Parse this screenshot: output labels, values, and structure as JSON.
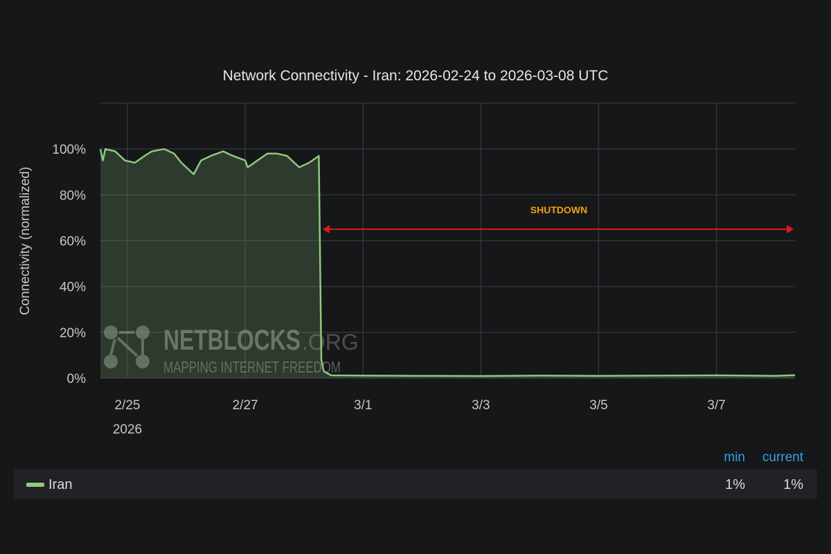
{
  "chart_data": {
    "type": "area",
    "title": "Network Connectivity - Iran: 2026-02-24 to 2026-03-08 UTC",
    "ylabel": "Connectivity (normalized)",
    "xlabel": "",
    "ylim": [
      0,
      120
    ],
    "xlim": [
      "2026-02-24T13:00",
      "2026-03-08T08:00"
    ],
    "y_ticks": [
      "0%",
      "20%",
      "40%",
      "60%",
      "80%",
      "100%"
    ],
    "y_tick_values": [
      0,
      20,
      40,
      60,
      80,
      100
    ],
    "x_ticks": [
      {
        "date": "2026-02-25T00:00",
        "label": "2/25",
        "sublabel": "2026"
      },
      {
        "date": "2026-02-27T00:00",
        "label": "2/27"
      },
      {
        "date": "2026-03-01T00:00",
        "label": "3/1"
      },
      {
        "date": "2026-03-03T00:00",
        "label": "3/3"
      },
      {
        "date": "2026-03-05T00:00",
        "label": "3/5"
      },
      {
        "date": "2026-03-07T00:00",
        "label": "3/7"
      }
    ],
    "grid": true,
    "series": [
      {
        "name": "Iran",
        "color": "#8fc97e",
        "points": [
          [
            "2026-02-24T13:00",
            100
          ],
          [
            "2026-02-24T14:00",
            95
          ],
          [
            "2026-02-24T15:00",
            100
          ],
          [
            "2026-02-24T19:00",
            99
          ],
          [
            "2026-02-24T23:00",
            95
          ],
          [
            "2026-02-25T03:00",
            94
          ],
          [
            "2026-02-25T07:00",
            97
          ],
          [
            "2026-02-25T10:00",
            99
          ],
          [
            "2026-02-25T15:00",
            100
          ],
          [
            "2026-02-25T19:00",
            98
          ],
          [
            "2026-02-25T22:00",
            94
          ],
          [
            "2026-02-26T00:00",
            92
          ],
          [
            "2026-02-26T03:00",
            89
          ],
          [
            "2026-02-26T06:00",
            95
          ],
          [
            "2026-02-26T10:00",
            97
          ],
          [
            "2026-02-26T15:00",
            99
          ],
          [
            "2026-02-26T19:00",
            97
          ],
          [
            "2026-02-27T00:00",
            95
          ],
          [
            "2026-02-27T01:00",
            92
          ],
          [
            "2026-02-27T05:00",
            95
          ],
          [
            "2026-02-27T09:00",
            98
          ],
          [
            "2026-02-27T13:00",
            98
          ],
          [
            "2026-02-27T17:00",
            97
          ],
          [
            "2026-02-27T22:00",
            92
          ],
          [
            "2026-02-28T02:00",
            94
          ],
          [
            "2026-02-28T06:00",
            97
          ],
          [
            "2026-02-28T07:00",
            8
          ],
          [
            "2026-02-28T08:00",
            3
          ],
          [
            "2026-02-28T11:00",
            1.2
          ],
          [
            "2026-03-01T00:00",
            1.1
          ],
          [
            "2026-03-02T00:00",
            1.0
          ],
          [
            "2026-03-03T00:00",
            0.9
          ],
          [
            "2026-03-04T00:00",
            1.1
          ],
          [
            "2026-03-05T00:00",
            1.0
          ],
          [
            "2026-03-06T00:00",
            1.1
          ],
          [
            "2026-03-07T00:00",
            1.2
          ],
          [
            "2026-03-08T00:00",
            1.0
          ],
          [
            "2026-03-08T08:00",
            1.3
          ]
        ]
      }
    ],
    "annotations": [
      {
        "text": "SHUTDOWN",
        "color": "#f2a20c",
        "arrow_color": "#e0181b",
        "from": "2026-02-28T07:00",
        "to": "2026-03-08T08:00",
        "y": 65
      }
    ],
    "watermark": {
      "name": "NETBLOCKS",
      "suffix": ".ORG",
      "tagline": "MAPPING INTERNET FREEDOM"
    }
  },
  "legend": {
    "headers": {
      "min": "min",
      "current": "current"
    },
    "items": [
      {
        "name": "Iran",
        "min": "1%",
        "current": "1%"
      }
    ]
  }
}
